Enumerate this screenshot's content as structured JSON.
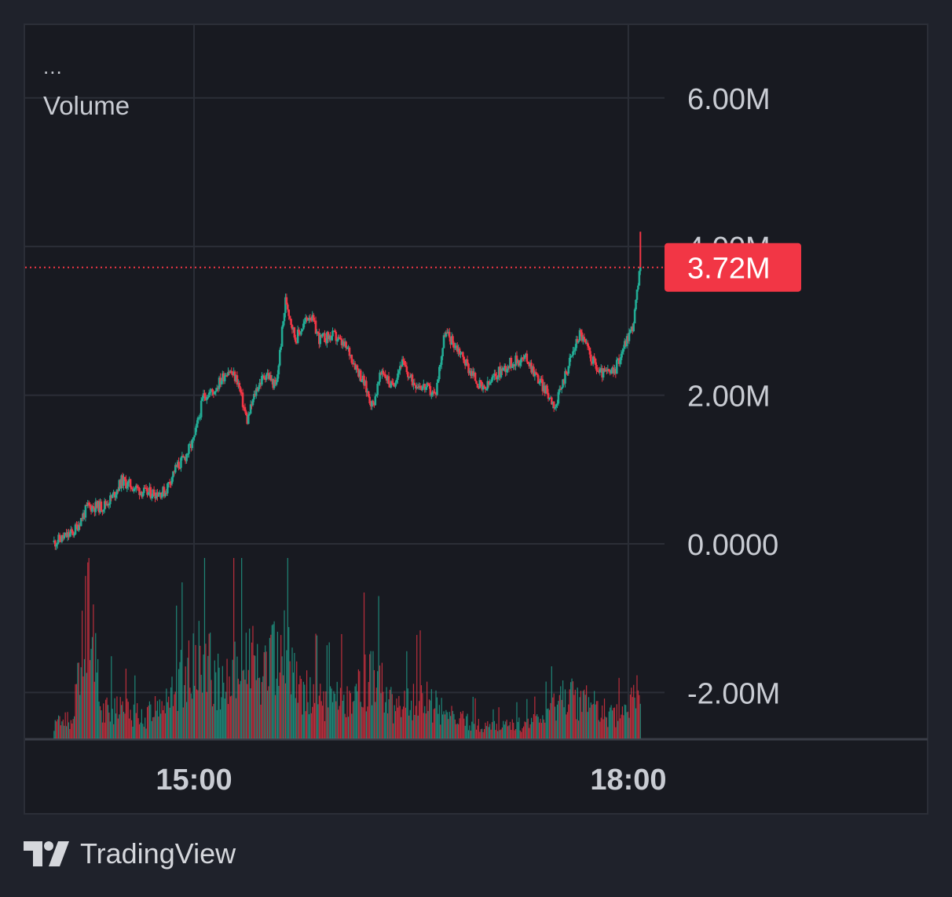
{
  "legend": {
    "menu": "...",
    "title": "Volume"
  },
  "branding": {
    "name": "TradingView",
    "logo_icon": "tradingview-logo-icon"
  },
  "colors": {
    "background": "#1f222b",
    "pane": "#181a21",
    "grid": "#2b2e37",
    "up": "#22ab94",
    "down": "#f23645",
    "text": "#c9ccd3"
  },
  "chart_data": {
    "type": "candlestick",
    "series_name": "Volume",
    "y_axis": {
      "ticks": [
        "6.00M",
        "4.00M",
        "2.00M",
        "0.0000",
        "-2.00M"
      ],
      "tick_values": [
        6000000,
        4000000,
        2000000,
        0,
        -2000000
      ],
      "range": [
        -2630000,
        6980000
      ],
      "position": "right"
    },
    "x_axis": {
      "ticks": [
        "15:00",
        "18:00"
      ],
      "range": [
        "13:50",
        "18:15"
      ]
    },
    "last_value": 3720000,
    "last_value_label": "3.72M",
    "grid": true,
    "price_path": [
      [
        "14:02",
        0.02
      ],
      [
        "14:10",
        0.15
      ],
      [
        "14:16",
        0.5
      ],
      [
        "14:22",
        0.5
      ],
      [
        "14:26",
        0.62
      ],
      [
        "14:30",
        0.85
      ],
      [
        "14:40",
        0.68
      ],
      [
        "14:48",
        0.7
      ],
      [
        "14:52",
        1.0
      ],
      [
        "14:56",
        1.15
      ],
      [
        "15:00",
        1.4
      ],
      [
        "15:04",
        2.0
      ],
      [
        "15:08",
        2.05
      ],
      [
        "15:14",
        2.35
      ],
      [
        "15:18",
        2.2
      ],
      [
        "15:22",
        1.65
      ],
      [
        "15:26",
        2.1
      ],
      [
        "15:30",
        2.3
      ],
      [
        "15:34",
        2.1
      ],
      [
        "15:38",
        3.3
      ],
      [
        "15:42",
        2.75
      ],
      [
        "15:48",
        3.1
      ],
      [
        "15:52",
        2.75
      ],
      [
        "15:58",
        2.8
      ],
      [
        "16:04",
        2.6
      ],
      [
        "16:10",
        2.2
      ],
      [
        "16:14",
        1.85
      ],
      [
        "16:18",
        2.35
      ],
      [
        "16:22",
        2.1
      ],
      [
        "16:26",
        2.45
      ],
      [
        "16:30",
        2.2
      ],
      [
        "16:36",
        2.1
      ],
      [
        "16:40",
        2.0
      ],
      [
        "16:44",
        2.85
      ],
      [
        "16:50",
        2.6
      ],
      [
        "16:54",
        2.35
      ],
      [
        "17:00",
        2.05
      ],
      [
        "17:06",
        2.3
      ],
      [
        "17:12",
        2.45
      ],
      [
        "17:18",
        2.5
      ],
      [
        "17:22",
        2.25
      ],
      [
        "17:26",
        2.05
      ],
      [
        "17:30",
        1.85
      ],
      [
        "17:34",
        2.3
      ],
      [
        "17:40",
        2.85
      ],
      [
        "17:44",
        2.55
      ],
      [
        "17:48",
        2.3
      ],
      [
        "17:54",
        2.3
      ],
      [
        "17:58",
        2.65
      ],
      [
        "18:02",
        2.95
      ],
      [
        "18:05",
        3.72
      ]
    ],
    "volume_profile": [
      [
        "14:02",
        0.1
      ],
      [
        "14:10",
        0.15
      ],
      [
        "14:16",
        0.9
      ],
      [
        "14:22",
        0.25
      ],
      [
        "14:30",
        0.2
      ],
      [
        "14:40",
        0.15
      ],
      [
        "14:50",
        0.3
      ],
      [
        "15:00",
        0.55
      ],
      [
        "15:04",
        0.6
      ],
      [
        "15:12",
        0.35
      ],
      [
        "15:20",
        0.6
      ],
      [
        "15:30",
        0.45
      ],
      [
        "15:36",
        0.7
      ],
      [
        "15:44",
        0.35
      ],
      [
        "15:54",
        0.25
      ],
      [
        "16:04",
        0.3
      ],
      [
        "16:14",
        0.45
      ],
      [
        "16:24",
        0.2
      ],
      [
        "16:34",
        0.3
      ],
      [
        "16:44",
        0.18
      ],
      [
        "16:54",
        0.12
      ],
      [
        "17:04",
        0.08
      ],
      [
        "17:14",
        0.1
      ],
      [
        "17:24",
        0.12
      ],
      [
        "17:34",
        0.3
      ],
      [
        "17:44",
        0.25
      ],
      [
        "17:54",
        0.15
      ],
      [
        "18:00",
        0.2
      ],
      [
        "18:05",
        0.35
      ]
    ]
  }
}
